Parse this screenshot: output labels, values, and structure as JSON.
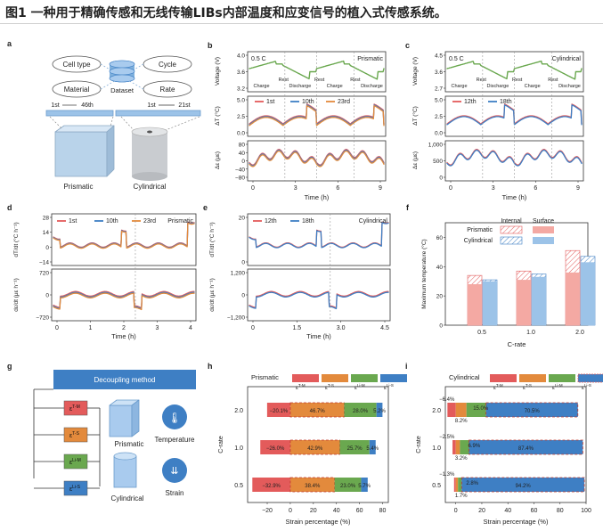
{
  "figure_title": "图1 一种用于精确传感和无线传输LIBs内部温度和应变信号的植入式传感系统。",
  "colors": {
    "red": "#e35b5b",
    "blue": "#3e7fc4",
    "orange": "#e38a3c",
    "green": "#6aa84f",
    "lightred": "#f4a9a3",
    "lightblue": "#9cc3e8",
    "grey": "#c8c8c8",
    "voltage": "#6aa84f"
  },
  "panels": {
    "a": {
      "letter": "a",
      "bubbles": [
        "Cell type",
        "Material",
        "Cycle",
        "Rate"
      ],
      "dataset": "Dataset",
      "cycles_prismatic": [
        "1st",
        "46th"
      ],
      "cycles_cylindrical": [
        "1st",
        "21st"
      ],
      "labels": [
        "Prismatic",
        "Cylindrical"
      ]
    },
    "b": {
      "letter": "b",
      "tag": "0.5 C",
      "cell": "Prismatic",
      "stages": [
        "Charge",
        "Rest",
        "Discharge",
        "Rest",
        "Charge",
        "Rest",
        "Discharge"
      ],
      "legend": [
        "1st",
        "10th",
        "23rd"
      ],
      "ylabels": [
        "Voltage (V)",
        "ΔT (°C)",
        "Δε (με)"
      ],
      "xlabel": "Time (h)",
      "xticks": [
        "0",
        "3",
        "6",
        "9"
      ],
      "yticks_v": [
        "4.0",
        "3.6",
        "3.2"
      ],
      "yticks_t": [
        "5.0",
        "2.5",
        "0.0"
      ],
      "yticks_e": [
        "80",
        "40",
        "0",
        "−40",
        "−80"
      ]
    },
    "c": {
      "letter": "c",
      "tag": "0.5 C",
      "cell": "Cylindrical",
      "stages": [
        "Charge",
        "Rest",
        "Discharge",
        "Rest",
        "Charge",
        "Rest",
        "Discharge"
      ],
      "legend": [
        "12th",
        "18th"
      ],
      "ylabels": [
        "Voltage (V)",
        "ΔT (°C)",
        "Δε (με)"
      ],
      "xlabel": "Time (h)",
      "xticks": [
        "0",
        "3",
        "6",
        "9"
      ],
      "yticks_v": [
        "4.5",
        "3.6",
        "2.7"
      ],
      "yticks_t": [
        "5.0",
        "2.5",
        "0.0"
      ],
      "yticks_e": [
        "1,000",
        "500",
        "0"
      ]
    },
    "d": {
      "letter": "d",
      "cell": "Prismatic",
      "legend": [
        "1st",
        "10th",
        "23rd"
      ],
      "ylabels": [
        "dT/dt (°C h⁻¹)",
        "dε/dt (με h⁻¹)"
      ],
      "xlabel": "Time (h)",
      "xticks": [
        "0",
        "1",
        "2",
        "3",
        "4"
      ],
      "yticks_top": [
        "28",
        "14",
        "0",
        "−14"
      ],
      "yticks_bot": [
        "720",
        "0",
        "−720"
      ]
    },
    "e": {
      "letter": "e",
      "cell": "Cylindrical",
      "legend": [
        "12th",
        "18th"
      ],
      "ylabels": [
        "dT/dt (°C h⁻¹)",
        "dε/dt (με h⁻¹)"
      ],
      "xlabel": "Time (h)",
      "xticks": [
        "0",
        "1.5",
        "3.0",
        "4.5"
      ],
      "yticks_top": [
        "20",
        "0"
      ],
      "yticks_bot": [
        "1,200",
        "0",
        "−1,200"
      ]
    },
    "f": {
      "letter": "f",
      "legend_titles": [
        "Internal",
        "Surface"
      ],
      "legend_rows": [
        "Prismatic",
        "Cylindrical"
      ],
      "ylabel": "Maximum temperature (°C)",
      "xlabel": "C-rate",
      "yticks": [
        "60",
        "40",
        "20",
        "0"
      ]
    },
    "g": {
      "letter": "g",
      "header": "Decoupling method",
      "components": [
        "ε",
        "ε",
        "ε",
        "ε"
      ],
      "component_sups": [
        "T-M",
        "T-S",
        "Li-M",
        "Li-S"
      ],
      "cells": [
        "Prismatic",
        "Cylindrical"
      ],
      "signals": [
        "Temperature",
        "Strain"
      ]
    },
    "h": {
      "letter": "h",
      "title": "Prismatic",
      "legend": [
        "ε",
        "ε",
        "ε",
        "ε"
      ],
      "legend_sups": [
        "T-M",
        "T-S",
        "Li-M",
        "Li-S"
      ],
      "ylabel": "C-rate",
      "xlabel": "Strain percentage (%)",
      "xticks": [
        "−20",
        "0",
        "20",
        "40",
        "60",
        "80"
      ],
      "value_labels": [
        [
          "−20.1%",
          "46.7%",
          "28.0%",
          "5.2%"
        ],
        [
          "−26.0%",
          "42.9%",
          "25.7%",
          "5.4%"
        ],
        [
          "−32.9%",
          "38.4%",
          "23.0%",
          "5.7%"
        ]
      ]
    },
    "i": {
      "letter": "i",
      "title": "Cylindrical",
      "legend": [
        "ε",
        "ε",
        "ε",
        "ε"
      ],
      "legend_sups": [
        "T-M",
        "T-S",
        "Li-M",
        "Li-S"
      ],
      "ylabel": "C-rate",
      "xlabel": "Strain percentage (%)",
      "xticks": [
        "0",
        "20",
        "40",
        "60",
        "80",
        "100"
      ],
      "value_labels": [
        [
          "−6.4%",
          "8.2%",
          "15.0%",
          "70.5%"
        ],
        [
          "−2.5%",
          "3.2%",
          "6.9%",
          "87.4%"
        ],
        [
          "−1.3%",
          "1.7%",
          "2.8%",
          "94.2%"
        ]
      ]
    }
  },
  "chart_data": [
    {
      "type": "bar",
      "panel": "f",
      "xlabel": "C-rate",
      "ylabel": "Maximum temperature (°C)",
      "categories": [
        "0.5",
        "1.0",
        "2.0"
      ],
      "ylim": [
        0,
        70
      ],
      "series": [
        {
          "name": "Prismatic Internal",
          "values": [
            34,
            37,
            51
          ]
        },
        {
          "name": "Prismatic Surface",
          "values": [
            28,
            31,
            36
          ]
        },
        {
          "name": "Cylindrical Internal",
          "values": [
            31,
            35,
            47
          ]
        },
        {
          "name": "Cylindrical Surface",
          "values": [
            30,
            33,
            43
          ]
        }
      ]
    },
    {
      "type": "bar",
      "panel": "h",
      "title": "Prismatic",
      "xlabel": "Strain percentage (%)",
      "ylabel": "C-rate",
      "categories": [
        "2.0",
        "1.0",
        "0.5"
      ],
      "xlim": [
        -37,
        85
      ],
      "series": [
        {
          "name": "εT-M",
          "values": [
            -20.1,
            -26.0,
            -32.9
          ]
        },
        {
          "name": "εT-S",
          "values": [
            46.7,
            42.9,
            38.4
          ]
        },
        {
          "name": "εLi-M",
          "values": [
            28.0,
            25.7,
            23.0
          ]
        },
        {
          "name": "εLi-S",
          "values": [
            5.2,
            5.4,
            5.7
          ]
        }
      ]
    },
    {
      "type": "bar",
      "panel": "i",
      "title": "Cylindrical",
      "xlabel": "Strain percentage (%)",
      "ylabel": "C-rate",
      "categories": [
        "2.0",
        "1.0",
        "0.5"
      ],
      "xlim": [
        -8,
        100
      ],
      "series": [
        {
          "name": "εT-M",
          "values": [
            -6.4,
            -2.5,
            -1.3
          ]
        },
        {
          "name": "εT-S",
          "values": [
            8.2,
            3.2,
            1.7
          ]
        },
        {
          "name": "εLi-M",
          "values": [
            15.0,
            6.9,
            2.8
          ]
        },
        {
          "name": "εLi-S",
          "values": [
            70.5,
            87.4,
            94.2
          ]
        }
      ]
    }
  ]
}
